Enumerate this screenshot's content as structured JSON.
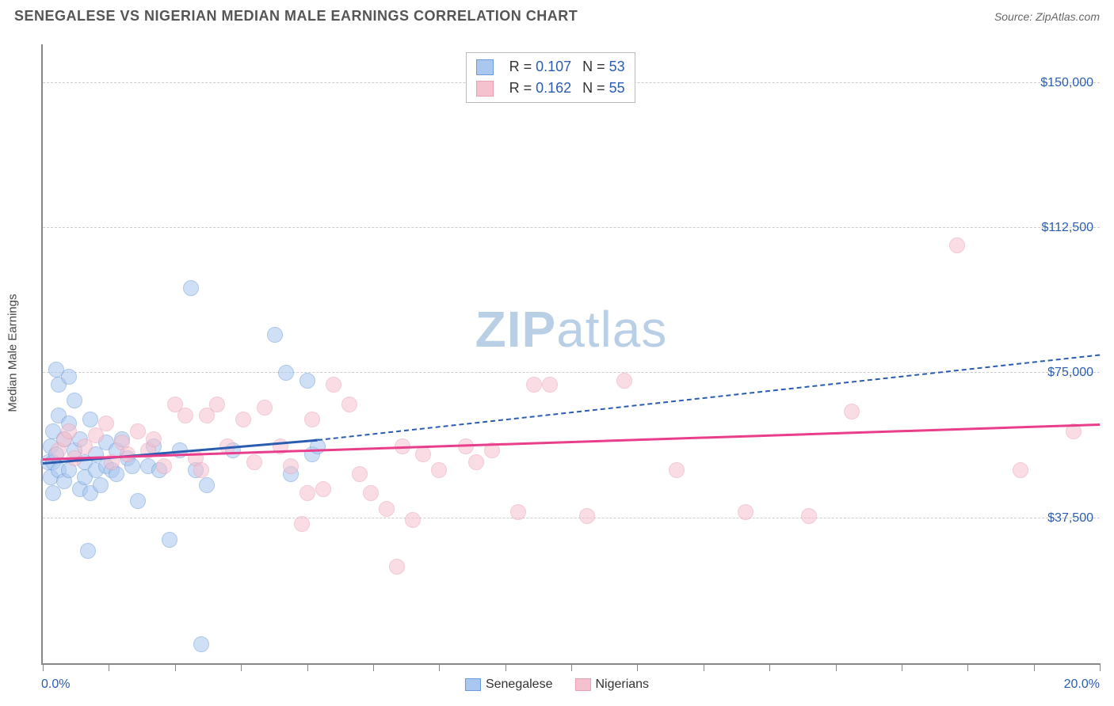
{
  "title": "SENEGALESE VS NIGERIAN MEDIAN MALE EARNINGS CORRELATION CHART",
  "source": "Source: ZipAtlas.com",
  "y_axis_title": "Median Male Earnings",
  "watermark": {
    "part1": "ZIP",
    "part2": "atlas",
    "color": "#b9cfe6",
    "fontsize": 64
  },
  "colors": {
    "blue_fill": "#a9c7ef",
    "blue_stroke": "#2a5db0",
    "pink_fill": "#f6c1ce",
    "pink_stroke": "#e83e8c",
    "grid": "#cccccc",
    "axis": "#888888",
    "tick_label": "#2a5db0",
    "title_text": "#555555",
    "body_text": "#333333"
  },
  "chart": {
    "type": "scatter",
    "xlim": [
      0,
      20
    ],
    "ylim": [
      0,
      160000
    ],
    "x_ticks_minor_step": 1.25,
    "y_gridlines": [
      37500,
      75000,
      112500,
      150000
    ],
    "y_tick_labels": [
      "$37,500",
      "$75,000",
      "$112,500",
      "$150,000"
    ],
    "x_min_label": "0.0%",
    "x_max_label": "20.0%",
    "marker_radius": 10,
    "marker_opacity": 0.55,
    "background_color": "#ffffff"
  },
  "series": [
    {
      "name": "Senegalese",
      "color_fill": "#a9c7ef",
      "color_stroke": "#6b9bd8",
      "R": "0.107",
      "N": "53",
      "trend": {
        "x1": 0,
        "y1": 52000,
        "x2": 5.2,
        "y2": 58000,
        "solid_color": "#2a5db0",
        "dash_to_x": 20,
        "dash_to_y": 80000,
        "width": 3
      },
      "points": [
        [
          0.1,
          52000
        ],
        [
          0.15,
          56000
        ],
        [
          0.15,
          48000
        ],
        [
          0.2,
          60000
        ],
        [
          0.2,
          52000
        ],
        [
          0.2,
          44000
        ],
        [
          0.25,
          76000
        ],
        [
          0.25,
          54000
        ],
        [
          0.3,
          72000
        ],
        [
          0.3,
          64000
        ],
        [
          0.3,
          50000
        ],
        [
          0.4,
          47000
        ],
        [
          0.4,
          58000
        ],
        [
          0.5,
          74000
        ],
        [
          0.5,
          62000
        ],
        [
          0.5,
          50000
        ],
        [
          0.6,
          55000
        ],
        [
          0.6,
          68000
        ],
        [
          0.7,
          45000
        ],
        [
          0.7,
          58000
        ],
        [
          0.8,
          52000
        ],
        [
          0.8,
          48000
        ],
        [
          0.85,
          29000
        ],
        [
          0.9,
          63000
        ],
        [
          0.9,
          44000
        ],
        [
          1.0,
          54000
        ],
        [
          1.0,
          50000
        ],
        [
          1.1,
          46000
        ],
        [
          1.2,
          57000
        ],
        [
          1.2,
          51000
        ],
        [
          1.3,
          50000
        ],
        [
          1.4,
          55000
        ],
        [
          1.4,
          49000
        ],
        [
          1.5,
          58000
        ],
        [
          1.6,
          53000
        ],
        [
          1.7,
          51000
        ],
        [
          1.8,
          42000
        ],
        [
          2.0,
          51000
        ],
        [
          2.1,
          56000
        ],
        [
          2.2,
          50000
        ],
        [
          2.4,
          32000
        ],
        [
          2.6,
          55000
        ],
        [
          2.8,
          97000
        ],
        [
          2.9,
          50000
        ],
        [
          3.0,
          5000
        ],
        [
          3.1,
          46000
        ],
        [
          3.6,
          55000
        ],
        [
          4.4,
          85000
        ],
        [
          4.6,
          75000
        ],
        [
          4.7,
          49000
        ],
        [
          5.0,
          73000
        ],
        [
          5.1,
          54000
        ],
        [
          5.2,
          56000
        ]
      ]
    },
    {
      "name": "Nigerians",
      "color_fill": "#f6c1ce",
      "color_stroke": "#e8a0b4",
      "R": "0.162",
      "N": "55",
      "trend": {
        "x1": 0,
        "y1": 53000,
        "x2": 20,
        "y2": 62000,
        "solid_color": "#e83e8c",
        "width": 3
      },
      "points": [
        [
          0.3,
          55000
        ],
        [
          0.4,
          58000
        ],
        [
          0.5,
          60000
        ],
        [
          0.6,
          53000
        ],
        [
          0.8,
          56000
        ],
        [
          1.0,
          59000
        ],
        [
          1.2,
          62000
        ],
        [
          1.3,
          52000
        ],
        [
          1.5,
          57000
        ],
        [
          1.6,
          54000
        ],
        [
          1.8,
          60000
        ],
        [
          2.0,
          55000
        ],
        [
          2.1,
          58000
        ],
        [
          2.3,
          51000
        ],
        [
          2.5,
          67000
        ],
        [
          2.7,
          64000
        ],
        [
          2.9,
          53000
        ],
        [
          3.1,
          64000
        ],
        [
          3.3,
          67000
        ],
        [
          3.5,
          56000
        ],
        [
          3.8,
          63000
        ],
        [
          4.0,
          52000
        ],
        [
          4.2,
          66000
        ],
        [
          4.5,
          56000
        ],
        [
          4.7,
          51000
        ],
        [
          5.0,
          44000
        ],
        [
          5.1,
          63000
        ],
        [
          5.3,
          45000
        ],
        [
          5.5,
          72000
        ],
        [
          5.8,
          67000
        ],
        [
          6.0,
          49000
        ],
        [
          6.2,
          44000
        ],
        [
          6.5,
          40000
        ],
        [
          6.7,
          25000
        ],
        [
          7.0,
          37000
        ],
        [
          7.2,
          54000
        ],
        [
          7.5,
          50000
        ],
        [
          8.0,
          56000
        ],
        [
          8.2,
          52000
        ],
        [
          9.0,
          39000
        ],
        [
          9.3,
          72000
        ],
        [
          9.6,
          72000
        ],
        [
          10.3,
          38000
        ],
        [
          11.0,
          73000
        ],
        [
          12.0,
          50000
        ],
        [
          13.3,
          39000
        ],
        [
          14.5,
          38000
        ],
        [
          15.3,
          65000
        ],
        [
          17.3,
          108000
        ],
        [
          18.5,
          50000
        ],
        [
          19.5,
          60000
        ],
        [
          4.9,
          36000
        ],
        [
          3.0,
          50000
        ],
        [
          6.8,
          56000
        ],
        [
          8.5,
          55000
        ]
      ]
    }
  ],
  "bottom_legend": [
    {
      "label": "Senegalese",
      "fill": "#a9c7ef",
      "stroke": "#6b9bd8"
    },
    {
      "label": "Nigerians",
      "fill": "#f6c1ce",
      "stroke": "#e8a0b4"
    }
  ]
}
